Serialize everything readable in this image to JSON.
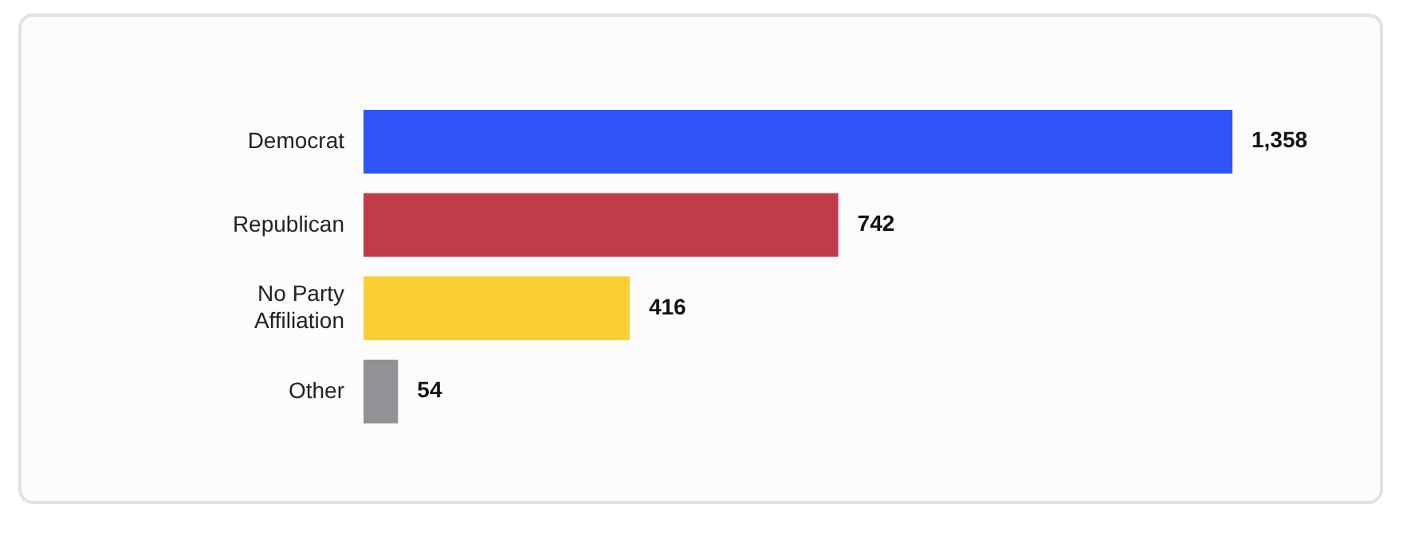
{
  "chart_data": {
    "type": "bar",
    "orientation": "horizontal",
    "categories": [
      "Democrat",
      "Republican",
      "No Party Affiliation",
      "Other"
    ],
    "values": [
      1358,
      742,
      416,
      54
    ],
    "colors": [
      "#2f55f9",
      "#c13b4a",
      "#f9cf35",
      "#929296"
    ],
    "value_labels": [
      "1,358",
      "742",
      "416",
      "54"
    ]
  }
}
